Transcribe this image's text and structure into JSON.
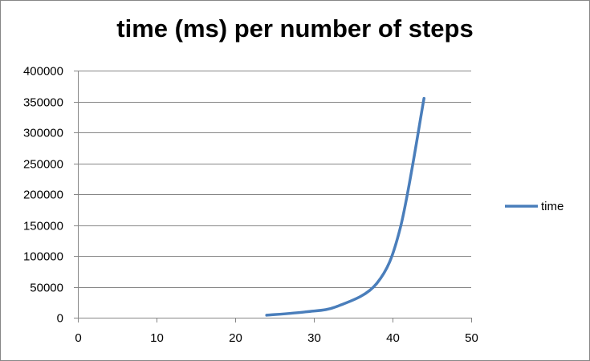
{
  "chart_data": {
    "type": "scatter",
    "title": "time (ms) per number of steps",
    "xlabel": "",
    "ylabel": "",
    "xlim": [
      0,
      50
    ],
    "ylim": [
      0,
      400000
    ],
    "x_ticks": [
      0,
      10,
      20,
      30,
      40,
      50
    ],
    "y_ticks": [
      0,
      50000,
      100000,
      150000,
      200000,
      250000,
      300000,
      350000,
      400000
    ],
    "grid": "horizontal",
    "legend": "right",
    "series": [
      {
        "name": "time",
        "color": "#4a7ebb",
        "style": "smooth-line",
        "x": [
          24,
          29,
          33,
          38,
          41,
          44
        ],
        "y": [
          4000,
          9500,
          18500,
          55500,
          146000,
          355000
        ]
      }
    ]
  }
}
